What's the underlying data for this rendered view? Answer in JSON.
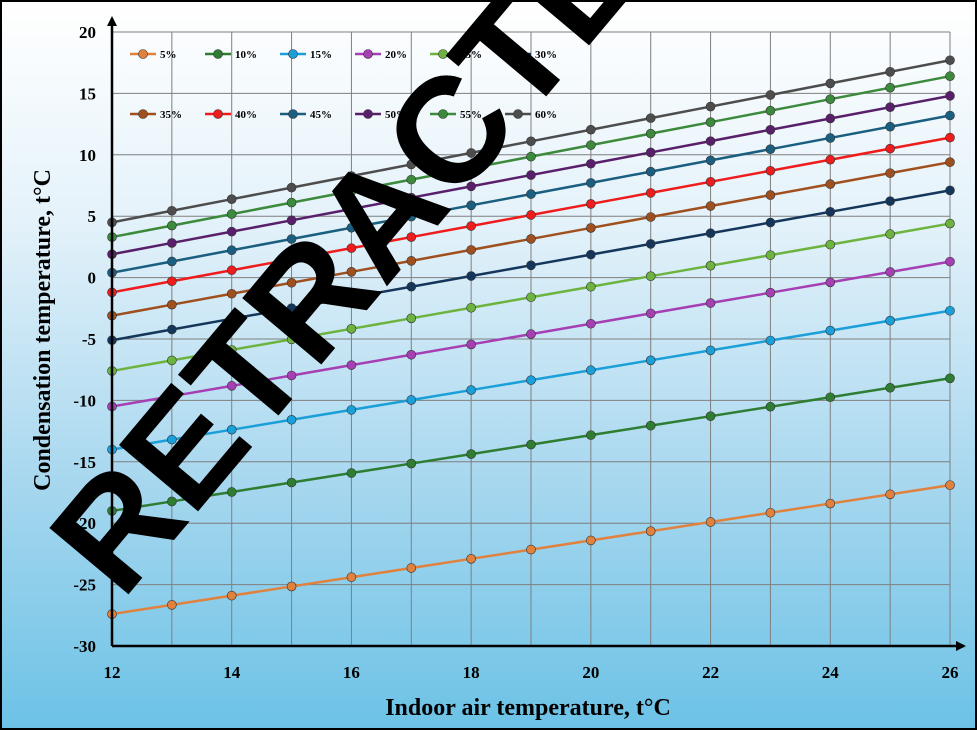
{
  "chart_data": {
    "type": "line",
    "title": "",
    "xlabel": "Indoor air temperature, t°C",
    "ylabel": "Condensation temperature, t°C",
    "xlim": [
      12,
      26
    ],
    "ylim": [
      -30,
      20
    ],
    "x": [
      12,
      13,
      14,
      15,
      16,
      17,
      18,
      19,
      20,
      21,
      22,
      23,
      24,
      25,
      26
    ],
    "x_ticks": [
      12,
      14,
      16,
      18,
      20,
      22,
      24,
      26
    ],
    "y_ticks": [
      20,
      15,
      10,
      5,
      0,
      -5,
      -10,
      -15,
      -20,
      -25,
      -30
    ],
    "grid": true,
    "legend_position": "top-left",
    "watermark": "RETRACTED",
    "series": [
      {
        "name": "5%",
        "color": "#e0813d",
        "start": -27.4,
        "end": -16.9
      },
      {
        "name": "10%",
        "color": "#2e7d32",
        "start": -19.0,
        "end": -8.2
      },
      {
        "name": "15%",
        "color": "#1b9fd8",
        "start": -14.0,
        "end": -2.7
      },
      {
        "name": "20%",
        "color": "#a63fb4",
        "start": -10.5,
        "end": 1.3
      },
      {
        "name": "25%",
        "color": "#6db33f",
        "start": -7.6,
        "end": 4.4
      },
      {
        "name": "30%",
        "color": "#14365a",
        "start": -5.1,
        "end": 7.1
      },
      {
        "name": "35%",
        "color": "#a0501f",
        "start": -3.1,
        "end": 9.4
      },
      {
        "name": "40%",
        "color": "#ee1c1c",
        "start": -1.2,
        "end": 11.4
      },
      {
        "name": "45%",
        "color": "#1a5e80",
        "start": 0.4,
        "end": 13.2
      },
      {
        "name": "50%",
        "color": "#5a1f6b",
        "start": 1.9,
        "end": 14.8
      },
      {
        "name": "55%",
        "color": "#3c8a3c",
        "start": 3.3,
        "end": 16.4
      },
      {
        "name": "60%",
        "color": "#4d4d4d",
        "start": 4.5,
        "end": 17.7
      }
    ]
  }
}
